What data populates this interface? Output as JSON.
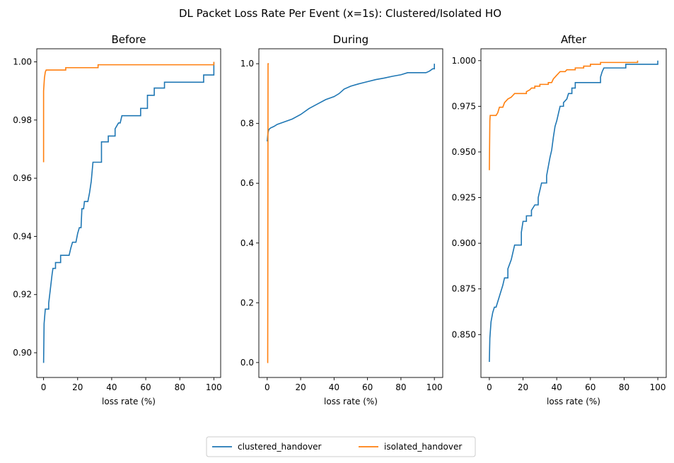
{
  "figure": {
    "suptitle": "DL Packet Loss Rate Per Event (x=1s): Clustered/Isolated HO"
  },
  "legend": {
    "placement": "bottom-center",
    "entries": [
      {
        "label": "clustered_handover",
        "color": "#1f77b4"
      },
      {
        "label": "isolated_handover",
        "color": "#ff7f0e"
      }
    ]
  },
  "chart_data": [
    {
      "type": "line",
      "title": "Before",
      "xlabel": "loss rate (%)",
      "xlim": [
        -4,
        104
      ],
      "ylim": [
        0.8915,
        1.0045
      ],
      "xticks": [
        0,
        20,
        40,
        60,
        80,
        100
      ],
      "yticks": [
        0.9,
        0.92,
        0.94,
        0.96,
        0.98,
        1.0
      ],
      "ytick_decimals": 2,
      "series": [
        {
          "name": "clustered_handover",
          "color": "#1f77b4",
          "points": [
            [
              0,
              0.8965
            ],
            [
              0.3,
              0.91
            ],
            [
              1,
              0.915
            ],
            [
              3,
              0.915
            ],
            [
              3,
              0.917
            ],
            [
              4,
              0.922
            ],
            [
              5,
              0.927
            ],
            [
              5.5,
              0.929
            ],
            [
              7,
              0.929
            ],
            [
              7,
              0.931
            ],
            [
              10,
              0.931
            ],
            [
              10,
              0.9335
            ],
            [
              15,
              0.9335
            ],
            [
              16,
              0.936
            ],
            [
              17,
              0.938
            ],
            [
              19,
              0.938
            ],
            [
              20,
              0.941
            ],
            [
              21,
              0.943
            ],
            [
              22,
              0.943
            ],
            [
              22.5,
              0.9495
            ],
            [
              23.5,
              0.9495
            ],
            [
              24,
              0.952
            ],
            [
              26,
              0.952
            ],
            [
              27,
              0.955
            ],
            [
              28,
              0.959
            ],
            [
              29,
              0.9655
            ],
            [
              34,
              0.9655
            ],
            [
              34,
              0.9725
            ],
            [
              38,
              0.9725
            ],
            [
              38,
              0.9745
            ],
            [
              42,
              0.9745
            ],
            [
              42,
              0.977
            ],
            [
              44,
              0.979
            ],
            [
              45,
              0.979
            ],
            [
              46,
              0.9815
            ],
            [
              57,
              0.9815
            ],
            [
              57,
              0.984
            ],
            [
              61,
              0.984
            ],
            [
              61,
              0.9885
            ],
            [
              65,
              0.9885
            ],
            [
              65,
              0.991
            ],
            [
              71,
              0.991
            ],
            [
              71,
              0.993
            ],
            [
              94,
              0.993
            ],
            [
              94,
              0.9955
            ],
            [
              100,
              0.9955
            ],
            [
              100,
              1.0
            ]
          ]
        },
        {
          "name": "isolated_handover",
          "color": "#ff7f0e",
          "points": [
            [
              0,
              0.9655
            ],
            [
              0,
              0.99
            ],
            [
              0.5,
              0.9945
            ],
            [
              1,
              0.9965
            ],
            [
              1.5,
              0.9972
            ],
            [
              13,
              0.9972
            ],
            [
              13,
              0.998
            ],
            [
              32,
              0.998
            ],
            [
              32,
              0.999
            ],
            [
              100,
              0.999
            ],
            [
              100,
              1.0
            ]
          ]
        }
      ]
    },
    {
      "type": "line",
      "title": "During",
      "xlabel": "loss rate (%)",
      "xlim": [
        -5,
        105
      ],
      "ylim": [
        -0.05,
        1.05
      ],
      "xticks": [
        0,
        20,
        40,
        60,
        80,
        100
      ],
      "yticks": [
        0.0,
        0.2,
        0.4,
        0.6,
        0.8,
        1.0
      ],
      "ytick_decimals": 1,
      "series": [
        {
          "name": "clustered_handover",
          "color": "#1f77b4",
          "points": [
            [
              0,
              0.74
            ],
            [
              0.5,
              0.77
            ],
            [
              1,
              0.78
            ],
            [
              2,
              0.785
            ],
            [
              4,
              0.79
            ],
            [
              6,
              0.797
            ],
            [
              10,
              0.805
            ],
            [
              15,
              0.815
            ],
            [
              20,
              0.83
            ],
            [
              25,
              0.85
            ],
            [
              30,
              0.865
            ],
            [
              35,
              0.88
            ],
            [
              40,
              0.89
            ],
            [
              43,
              0.9
            ],
            [
              46,
              0.915
            ],
            [
              50,
              0.925
            ],
            [
              55,
              0.933
            ],
            [
              60,
              0.94
            ],
            [
              65,
              0.947
            ],
            [
              70,
              0.952
            ],
            [
              75,
              0.958
            ],
            [
              80,
              0.963
            ],
            [
              84,
              0.97
            ],
            [
              95,
              0.97
            ],
            [
              97,
              0.975
            ],
            [
              99,
              0.983
            ],
            [
              100,
              0.983
            ],
            [
              100,
              1.0
            ]
          ]
        },
        {
          "name": "isolated_handover",
          "color": "#ff7f0e",
          "points": [
            [
              0,
              0.0
            ],
            [
              0.3,
              0.0
            ],
            [
              0.5,
              1.0
            ],
            [
              1,
              1.0
            ]
          ]
        }
      ]
    },
    {
      "type": "line",
      "title": "After",
      "xlabel": "loss rate (%)",
      "xlim": [
        -5,
        105
      ],
      "ylim": [
        0.8265,
        1.0065
      ],
      "xticks": [
        0,
        20,
        40,
        60,
        80,
        100
      ],
      "yticks": [
        0.85,
        0.875,
        0.9,
        0.925,
        0.95,
        0.975,
        1.0
      ],
      "ytick_decimals": 3,
      "series": [
        {
          "name": "clustered_handover",
          "color": "#1f77b4",
          "points": [
            [
              0,
              0.835
            ],
            [
              0.3,
              0.848
            ],
            [
              1,
              0.857
            ],
            [
              2,
              0.862
            ],
            [
              3,
              0.865
            ],
            [
              4,
              0.865
            ],
            [
              5,
              0.868
            ],
            [
              6,
              0.871
            ],
            [
              7,
              0.874
            ],
            [
              8,
              0.877
            ],
            [
              9,
              0.881
            ],
            [
              11,
              0.881
            ],
            [
              11,
              0.886
            ],
            [
              13,
              0.891
            ],
            [
              14,
              0.895
            ],
            [
              15,
              0.899
            ],
            [
              19,
              0.899
            ],
            [
              19,
              0.906
            ],
            [
              20,
              0.912
            ],
            [
              22,
              0.912
            ],
            [
              22,
              0.915
            ],
            [
              25,
              0.915
            ],
            [
              25,
              0.918
            ],
            [
              27,
              0.921
            ],
            [
              29,
              0.921
            ],
            [
              29,
              0.925
            ],
            [
              30,
              0.929
            ],
            [
              31,
              0.933
            ],
            [
              34,
              0.933
            ],
            [
              34,
              0.937
            ],
            [
              35,
              0.942
            ],
            [
              36,
              0.947
            ],
            [
              37,
              0.951
            ],
            [
              38,
              0.958
            ],
            [
              39,
              0.964
            ],
            [
              40,
              0.967
            ],
            [
              41,
              0.971
            ],
            [
              42,
              0.975
            ],
            [
              44,
              0.975
            ],
            [
              44,
              0.977
            ],
            [
              46,
              0.979
            ],
            [
              47,
              0.982
            ],
            [
              49,
              0.982
            ],
            [
              49,
              0.985
            ],
            [
              51,
              0.985
            ],
            [
              51,
              0.988
            ],
            [
              55,
              0.988
            ],
            [
              55,
              0.988
            ],
            [
              66,
              0.988
            ],
            [
              66,
              0.991
            ],
            [
              67,
              0.994
            ],
            [
              68,
              0.996
            ],
            [
              81,
              0.996
            ],
            [
              81,
              0.998
            ],
            [
              100,
              0.998
            ],
            [
              100,
              1.0
            ]
          ]
        },
        {
          "name": "isolated_handover",
          "color": "#ff7f0e",
          "points": [
            [
              0,
              0.94
            ],
            [
              0.3,
              0.967
            ],
            [
              0.5,
              0.97
            ],
            [
              4,
              0.97
            ],
            [
              5,
              0.9715
            ],
            [
              6,
              0.9745
            ],
            [
              8,
              0.9745
            ],
            [
              9,
              0.977
            ],
            [
              11,
              0.979
            ],
            [
              13,
              0.98
            ],
            [
              14,
              0.981
            ],
            [
              15,
              0.982
            ],
            [
              22,
              0.982
            ],
            [
              22,
              0.983
            ],
            [
              24,
              0.984
            ],
            [
              25,
              0.985
            ],
            [
              27,
              0.985
            ],
            [
              27,
              0.986
            ],
            [
              30,
              0.986
            ],
            [
              30,
              0.987
            ],
            [
              35,
              0.987
            ],
            [
              35,
              0.988
            ],
            [
              37,
              0.988
            ],
            [
              38,
              0.99
            ],
            [
              39,
              0.991
            ],
            [
              40,
              0.992
            ],
            [
              41,
              0.993
            ],
            [
              42,
              0.994
            ],
            [
              45,
              0.994
            ],
            [
              46,
              0.995
            ],
            [
              51,
              0.995
            ],
            [
              51,
              0.996
            ],
            [
              56,
              0.996
            ],
            [
              56,
              0.997
            ],
            [
              60,
              0.997
            ],
            [
              60,
              0.998
            ],
            [
              66,
              0.998
            ],
            [
              66,
              0.999
            ],
            [
              88,
              0.999
            ],
            [
              88,
              1.0
            ]
          ]
        }
      ]
    }
  ]
}
